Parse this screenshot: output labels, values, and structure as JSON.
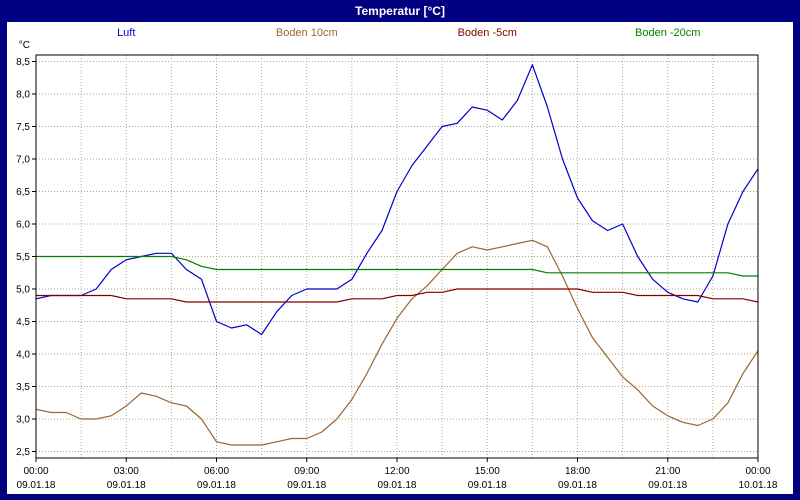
{
  "window": {
    "title": "Temperatur [°C]"
  },
  "colors": {
    "frame": "#000080",
    "background": "#ffffff",
    "grid": "#a9a989",
    "axis": "#000000"
  },
  "chart_data": {
    "type": "line",
    "title": "Temperatur [°C]",
    "y_unit": "°C",
    "ylim": [
      2.4,
      8.6
    ],
    "yticks": [
      2.5,
      3.0,
      3.5,
      4.0,
      4.5,
      5.0,
      5.5,
      6.0,
      6.5,
      7.0,
      7.5,
      8.0,
      8.5
    ],
    "decimal_separator": ",",
    "grid": "dotted",
    "legend_position": "top",
    "x_hours": [
      0,
      0.5,
      1,
      1.5,
      2,
      2.5,
      3,
      3.5,
      4,
      4.5,
      5,
      5.5,
      6,
      6.5,
      7,
      7.5,
      8,
      8.5,
      9,
      9.5,
      10,
      10.5,
      11,
      11.5,
      12,
      12.5,
      13,
      13.5,
      14,
      14.5,
      15,
      15.5,
      16,
      16.5,
      17,
      17.5,
      18,
      18.5,
      19,
      19.5,
      20,
      20.5,
      21,
      21.5,
      22,
      22.5,
      23,
      23.5,
      24
    ],
    "minor_x_grid_step_hours": 1.5,
    "xticks_hours": [
      0,
      3,
      6,
      9,
      12,
      15,
      18,
      21,
      24
    ],
    "xtick_labels": [
      "00:00",
      "03:00",
      "06:00",
      "09:00",
      "12:00",
      "15:00",
      "18:00",
      "21:00",
      "00:00"
    ],
    "xtick_dates": [
      "09.01.18",
      "09.01.18",
      "09.01.18",
      "09.01.18",
      "09.01.18",
      "09.01.18",
      "09.01.18",
      "09.01.18",
      "10.01.18"
    ],
    "series": [
      {
        "name": "Luft",
        "color": "#0000cc",
        "values": [
          4.85,
          4.9,
          4.9,
          4.9,
          5.0,
          5.3,
          5.45,
          5.5,
          5.55,
          5.55,
          5.3,
          5.15,
          4.5,
          4.4,
          4.45,
          4.3,
          4.65,
          4.9,
          5.0,
          5.0,
          5.0,
          5.15,
          5.55,
          5.9,
          6.5,
          6.9,
          7.2,
          7.5,
          7.55,
          7.8,
          7.75,
          7.6,
          7.9,
          8.45,
          7.8,
          7.0,
          6.4,
          6.05,
          5.9,
          6.0,
          5.5,
          5.15,
          4.95,
          4.85,
          4.8,
          5.2,
          6.0,
          6.5,
          6.85
        ]
      },
      {
        "name": "Boden 10cm",
        "color": "#996633",
        "values": [
          3.15,
          3.1,
          3.1,
          3.0,
          3.0,
          3.05,
          3.2,
          3.4,
          3.35,
          3.25,
          3.2,
          3.0,
          2.65,
          2.6,
          2.6,
          2.6,
          2.65,
          2.7,
          2.7,
          2.8,
          3.0,
          3.3,
          3.7,
          4.15,
          4.55,
          4.85,
          5.05,
          5.3,
          5.55,
          5.65,
          5.6,
          5.65,
          5.7,
          5.75,
          5.65,
          5.2,
          4.7,
          4.25,
          3.95,
          3.65,
          3.45,
          3.2,
          3.05,
          2.95,
          2.9,
          3.0,
          3.25,
          3.7,
          4.05
        ]
      },
      {
        "name": "Boden -5cm",
        "color": "#800000",
        "values": [
          4.9,
          4.9,
          4.9,
          4.9,
          4.9,
          4.9,
          4.85,
          4.85,
          4.85,
          4.85,
          4.8,
          4.8,
          4.8,
          4.8,
          4.8,
          4.8,
          4.8,
          4.8,
          4.8,
          4.8,
          4.8,
          4.85,
          4.85,
          4.85,
          4.9,
          4.9,
          4.95,
          4.95,
          5.0,
          5.0,
          5.0,
          5.0,
          5.0,
          5.0,
          5.0,
          5.0,
          5.0,
          4.95,
          4.95,
          4.95,
          4.9,
          4.9,
          4.9,
          4.9,
          4.9,
          4.85,
          4.85,
          4.85,
          4.8
        ]
      },
      {
        "name": "Boden -20cm",
        "color": "#008000",
        "values": [
          5.5,
          5.5,
          5.5,
          5.5,
          5.5,
          5.5,
          5.5,
          5.5,
          5.5,
          5.5,
          5.45,
          5.35,
          5.3,
          5.3,
          5.3,
          5.3,
          5.3,
          5.3,
          5.3,
          5.3,
          5.3,
          5.3,
          5.3,
          5.3,
          5.3,
          5.3,
          5.3,
          5.3,
          5.3,
          5.3,
          5.3,
          5.3,
          5.3,
          5.3,
          5.25,
          5.25,
          5.25,
          5.25,
          5.25,
          5.25,
          5.25,
          5.25,
          5.25,
          5.25,
          5.25,
          5.25,
          5.25,
          5.2,
          5.2
        ]
      }
    ]
  }
}
